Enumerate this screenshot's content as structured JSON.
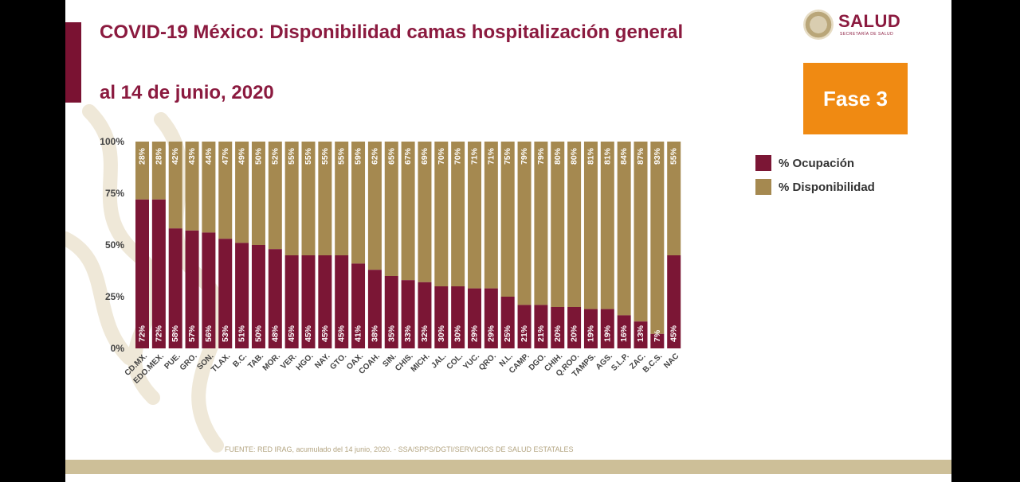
{
  "header": {
    "title": "COVID-19 México: Disponibilidad camas hospitalización general",
    "subtitle": "al 14 de junio, 2020"
  },
  "logo": {
    "name": "SALUD",
    "subtext": "SECRETARÍA DE SALUD"
  },
  "phase_badge": "Fase 3",
  "source_note": "FUENTE: RED IRAG, acumulado del 14 junio, 2020. - SSA/SPPS/DGTI/SERVICIOS DE SALUD ESTATALES",
  "colors": {
    "ocupacion": "#7b1635",
    "disponibilidad": "#a58950",
    "title": "#8b1a3f",
    "phase": "#f08a12"
  },
  "chart_data": {
    "type": "bar",
    "stacked": true,
    "title": "COVID-19 México: Disponibilidad camas hospitalización general",
    "ylim": [
      0,
      100
    ],
    "y_ticks": [
      "0%",
      "25%",
      "50%",
      "75%",
      "100%"
    ],
    "y_tick_values": [
      0,
      25,
      50,
      75,
      100
    ],
    "legend_position": "right",
    "categories": [
      "CD.MX.",
      "EDO.MEX.",
      "PUE.",
      "GRO.",
      "SON.",
      "TLAX.",
      "B.C.",
      "TAB.",
      "MOR.",
      "VER.",
      "HGO.",
      "NAY.",
      "GTO.",
      "OAX.",
      "COAH.",
      "SIN.",
      "CHIS.",
      "MICH.",
      "JAL.",
      "COL.",
      "YUC.",
      "QRO.",
      "N.L.",
      "CAMP.",
      "DGO.",
      "CHIH.",
      "Q.ROO.",
      "TAMPS.",
      "AGS.",
      "S.L.P.",
      "ZAC.",
      "B.C.S.",
      "NAC"
    ],
    "series": [
      {
        "name": "% Ocupación",
        "values": [
          72,
          72,
          58,
          57,
          56,
          53,
          51,
          50,
          48,
          45,
          45,
          45,
          45,
          41,
          38,
          35,
          33,
          32,
          30,
          30,
          29,
          29,
          25,
          21,
          21,
          20,
          20,
          19,
          19,
          16,
          13,
          7,
          45
        ]
      },
      {
        "name": "% Disponibilidad",
        "values": [
          28,
          28,
          42,
          43,
          44,
          47,
          49,
          50,
          52,
          55,
          55,
          55,
          55,
          59,
          62,
          65,
          67,
          69,
          70,
          70,
          71,
          71,
          75,
          79,
          79,
          80,
          80,
          81,
          81,
          84,
          87,
          93,
          55
        ]
      }
    ]
  }
}
